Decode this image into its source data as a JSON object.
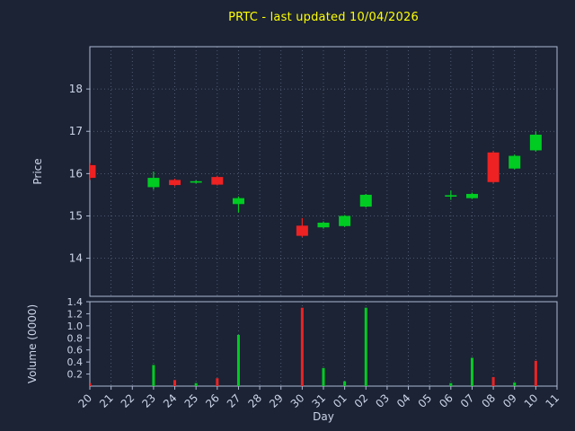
{
  "colors": {
    "background": "#1b2335",
    "title": "#ffff00",
    "axis": "#aeb9d2",
    "grid": "#93a1bd",
    "tick_label": "#ccd5e8",
    "up": "#00cc22",
    "down": "#ee2222"
  },
  "chart_data": {
    "type": "candlestick",
    "title": "PRTC - last updated 10/04/2026",
    "xlabel": "Day",
    "ylabel_price": "Price",
    "ylabel_volume": "Volume (0000)",
    "x_ticklabels": [
      "20",
      "21",
      "22",
      "23",
      "24",
      "25",
      "26",
      "27",
      "28",
      "29",
      "30",
      "31",
      "01",
      "02",
      "03",
      "04",
      "05",
      "06",
      "07",
      "08",
      "09",
      "10",
      "11"
    ],
    "price_ticks": [
      14,
      15,
      16,
      17,
      18
    ],
    "price_ylim": [
      13.1,
      19.0
    ],
    "volume_ticks": [
      0.2,
      0.4,
      0.6,
      0.8,
      1.0,
      1.2,
      1.4
    ],
    "volume_ylim": [
      0,
      1.4
    ],
    "grid": "dotted",
    "candles": [
      {
        "day": "20",
        "x_index": 0,
        "open": 16.2,
        "high": 16.25,
        "low": 15.85,
        "close": 15.9,
        "volume": 0.05,
        "direction": "down",
        "volume_direction": "down"
      },
      {
        "day": "23",
        "x_index": 3,
        "open": 15.68,
        "high": 16.05,
        "low": 15.62,
        "close": 15.9,
        "volume": 0.35,
        "direction": "up",
        "volume_direction": "up"
      },
      {
        "day": "24",
        "x_index": 4,
        "open": 15.85,
        "high": 15.88,
        "low": 15.7,
        "close": 15.73,
        "volume": 0.1,
        "direction": "down",
        "volume_direction": "down"
      },
      {
        "day": "25",
        "x_index": 5,
        "open": 15.79,
        "high": 15.84,
        "low": 15.77,
        "close": 15.82,
        "volume": 0.05,
        "direction": "up",
        "volume_direction": "up"
      },
      {
        "day": "26",
        "x_index": 6,
        "open": 15.92,
        "high": 15.95,
        "low": 15.72,
        "close": 15.74,
        "volume": 0.13,
        "direction": "down",
        "volume_direction": "down"
      },
      {
        "day": "27",
        "x_index": 7,
        "open": 15.28,
        "high": 15.46,
        "low": 15.08,
        "close": 15.42,
        "volume": 0.85,
        "direction": "up",
        "volume_direction": "up"
      },
      {
        "day": "30",
        "x_index": 10,
        "open": 14.77,
        "high": 14.95,
        "low": 14.5,
        "close": 14.53,
        "volume": 1.3,
        "direction": "down",
        "volume_direction": "down"
      },
      {
        "day": "31",
        "x_index": 11,
        "open": 14.73,
        "high": 14.87,
        "low": 14.7,
        "close": 14.84,
        "volume": 0.3,
        "direction": "up",
        "volume_direction": "up"
      },
      {
        "day": "01",
        "x_index": 12,
        "open": 14.76,
        "high": 15.02,
        "low": 14.74,
        "close": 15.0,
        "volume": 0.08,
        "direction": "up",
        "volume_direction": "up"
      },
      {
        "day": "02",
        "x_index": 13,
        "open": 15.22,
        "high": 15.52,
        "low": 15.2,
        "close": 15.5,
        "volume": 1.3,
        "direction": "up",
        "volume_direction": "up"
      },
      {
        "day": "06",
        "x_index": 17,
        "open": 15.46,
        "high": 15.6,
        "low": 15.38,
        "close": 15.49,
        "volume": 0.05,
        "direction": "up",
        "volume_direction": "up"
      },
      {
        "day": "07",
        "x_index": 18,
        "open": 15.42,
        "high": 15.55,
        "low": 15.4,
        "close": 15.52,
        "volume": 0.47,
        "direction": "up",
        "volume_direction": "up"
      },
      {
        "day": "08",
        "x_index": 19,
        "open": 16.5,
        "high": 16.54,
        "low": 15.77,
        "close": 15.8,
        "volume": 0.15,
        "direction": "down",
        "volume_direction": "down"
      },
      {
        "day": "09",
        "x_index": 20,
        "open": 16.12,
        "high": 16.45,
        "low": 16.1,
        "close": 16.42,
        "volume": 0.06,
        "direction": "up",
        "volume_direction": "up"
      },
      {
        "day": "10",
        "x_index": 21,
        "open": 16.55,
        "high": 17.0,
        "low": 16.52,
        "close": 16.92,
        "volume": 0.42,
        "direction": "up",
        "volume_direction": "down"
      }
    ]
  }
}
